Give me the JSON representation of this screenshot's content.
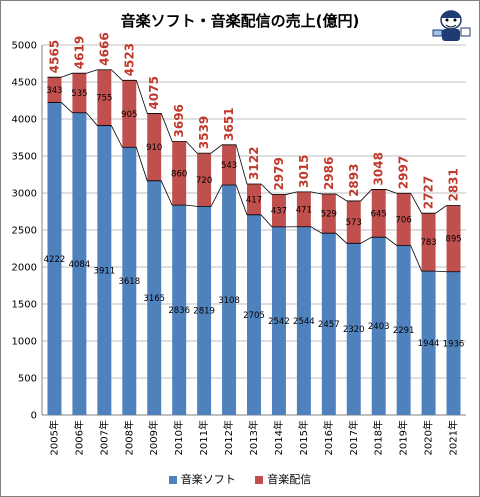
{
  "chart_data": {
    "type": "bar",
    "stacked": true,
    "title": "音楽ソフト・音楽配信の売上(億円)",
    "categories": [
      "2005年",
      "2006年",
      "2007年",
      "2008年",
      "2009年",
      "2010年",
      "2011年",
      "2012年",
      "2013年",
      "2014年",
      "2015年",
      "2016年",
      "2017年",
      "2018年",
      "2019年",
      "2020年",
      "2021年"
    ],
    "series": [
      {
        "name": "音楽ソフト",
        "color": "#4f81bd",
        "values": [
          4222,
          4084,
          3911,
          3618,
          3165,
          2836,
          2819,
          3108,
          2705,
          2542,
          2544,
          2457,
          2320,
          2403,
          2291,
          1944,
          1936
        ]
      },
      {
        "name": "音楽配信",
        "color": "#c0504d",
        "values": [
          343,
          535,
          755,
          905,
          910,
          860,
          720,
          543,
          417,
          437,
          471,
          529,
          573,
          645,
          706,
          783,
          895
        ]
      }
    ],
    "totals": [
      4565,
      4619,
      4666,
      4523,
      4075,
      3696,
      3539,
      3651,
      3122,
      2979,
      3015,
      2986,
      2893,
      3048,
      2997,
      2727,
      2831
    ],
    "ylim": [
      0,
      5000
    ],
    "yticks": [
      0,
      500,
      1000,
      1500,
      2000,
      2500,
      3000,
      3500,
      4000,
      4500,
      5000
    ],
    "grid": true,
    "legend_position": "bottom"
  }
}
